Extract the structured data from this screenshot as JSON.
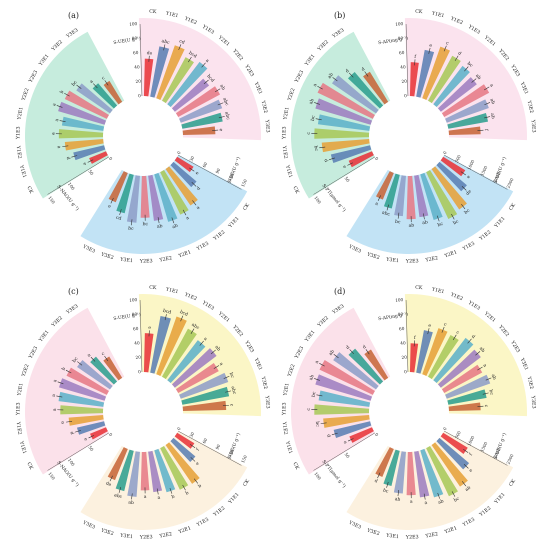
{
  "categories": [
    "CK",
    "Y1E1",
    "Y1E2",
    "Y1E3",
    "Y2E1",
    "Y2E2",
    "Y2E3",
    "Y3E1",
    "Y3E2",
    "Y3E3"
  ],
  "colors": [
    "#e8343a",
    "#5b7fb4",
    "#e6a23a",
    "#a8c85a",
    "#5fb2c9",
    "#9e7ec0",
    "#e67a86",
    "#8e9ec8",
    "#2f9f8f",
    "#c7663a"
  ],
  "chart_data": [
    {
      "type": "bar",
      "panel": "(a)",
      "groups": [
        {
          "name": "S-UE(U g⁻¹)",
          "fill": "#fbe3ee",
          "scale": [
            0,
            100
          ],
          "tick_labels": [
            "0",
            "20",
            "40",
            "60",
            "80",
            "100"
          ],
          "values": [
            52,
            71,
            78,
            69,
            74,
            60,
            66,
            61,
            57,
            45
          ],
          "sig": [
            "de",
            "abc",
            "cd",
            "bcd",
            "a",
            "bcd",
            "ab",
            "abc",
            "abc",
            "e"
          ]
        },
        {
          "name": "S-BG(U g⁻¹)",
          "fill": "#c2e3f5",
          "scale": [
            0,
            150
          ],
          "tick_labels": [
            "0",
            "30",
            "60",
            "90",
            "120",
            "150"
          ],
          "values": [
            40,
            63,
            92,
            98,
            103,
            95,
            87,
            98,
            82,
            66
          ],
          "sig": [
            "e",
            "d",
            "a",
            "a",
            "ab",
            "ab",
            "bc",
            "bc",
            "cd",
            "e"
          ]
        },
        {
          "name": "S-NAG(U g⁻¹)",
          "fill": "#c6ecdd",
          "scale": [
            0,
            150
          ],
          "tick_labels": [
            "0",
            "50",
            "100",
            "150"
          ],
          "values": [
            38,
            66,
            80,
            92,
            87,
            101,
            97,
            85,
            61,
            51
          ],
          "sig": [
            "e",
            "d",
            "a",
            "a",
            "a",
            "a",
            "b",
            "bc",
            "a",
            "c"
          ]
        }
      ]
    },
    {
      "type": "bar",
      "panel": "(b)",
      "groups": [
        {
          "name": "S-AP(mg g⁻¹)",
          "fill": "#fbe3ee",
          "scale": [
            0,
            100
          ],
          "tick_labels": [
            "0",
            "20",
            "40",
            "60",
            "80",
            "100"
          ],
          "values": [
            47,
            66,
            76,
            71,
            67,
            63,
            71,
            62,
            56,
            44
          ],
          "sig": [
            "f",
            "e",
            "c",
            "d",
            "bc",
            "ab",
            "a",
            "ab",
            "ab",
            "f"
          ]
        },
        {
          "name": "S-UE(U g⁻¹)",
          "fill": "#c2e3f5",
          "scale": [
            0,
            2500
          ],
          "tick_labels": [
            "0",
            "500",
            "1000",
            "1500",
            "2000",
            "2500"
          ],
          "values": [
            900,
            1250,
            1700,
            1800,
            1650,
            1450,
            1500,
            1400,
            1200,
            1000
          ],
          "sig": [
            "e",
            "de",
            "bc",
            "bc",
            "bc",
            "ab",
            "ab",
            "bc",
            "abc",
            "a"
          ]
        },
        {
          "name": "S-PT(μmol g⁻¹)",
          "fill": "#c6ecdd",
          "scale": [
            0,
            100
          ],
          "tick_labels": [
            "0",
            "50",
            "100"
          ],
          "values": [
            35,
            56,
            66,
            76,
            72,
            80,
            85,
            74,
            61,
            49
          ],
          "sig": [
            "e",
            "d",
            "bc",
            "c",
            "bc",
            "ab",
            "a",
            "ab",
            "d",
            "d"
          ]
        }
      ]
    },
    {
      "type": "bar",
      "panel": "(c)",
      "groups": [
        {
          "name": "S-UE(U g⁻¹)",
          "fill": "#fbf6c6",
          "scale": [
            0,
            100
          ],
          "tick_labels": [
            "0",
            "20",
            "40",
            "60",
            "80",
            "100"
          ],
          "values": [
            54,
            80,
            85,
            76,
            70,
            73,
            64,
            70,
            66,
            60
          ],
          "sig": [
            "e",
            "bcd",
            "bcd",
            "abc",
            "a",
            "ab",
            "a",
            "bc",
            "abc",
            "c"
          ]
        },
        {
          "name": "S-BG(U g⁻¹)",
          "fill": "#fcf1df",
          "scale": [
            0,
            150
          ],
          "tick_labels": [
            "0",
            "30",
            "60",
            "90",
            "120",
            "150"
          ],
          "values": [
            42,
            60,
            98,
            96,
            91,
            85,
            80,
            94,
            86,
            70
          ],
          "sig": [
            "f",
            "e",
            "b",
            "b",
            "b",
            "a",
            "a",
            "ab",
            "abc",
            "de"
          ]
        },
        {
          "name": "S-NAG(U g⁻¹)",
          "fill": "#fbe1ea",
          "scale": [
            0,
            150
          ],
          "tick_labels": [
            "0",
            "50",
            "100",
            "150"
          ],
          "values": [
            36,
            58,
            72,
            89,
            94,
            99,
            93,
            83,
            68,
            52
          ],
          "sig": [
            "e",
            "d",
            "a",
            "a",
            "a",
            "a",
            "b",
            "bc",
            "a",
            "c"
          ]
        }
      ]
    },
    {
      "type": "bar",
      "panel": "(d)",
      "groups": [
        {
          "name": "S-AP(mg g⁻¹)",
          "fill": "#fbf6c6",
          "scale": [
            0,
            100
          ],
          "tick_labels": [
            "0",
            "20",
            "40",
            "60",
            "80",
            "100"
          ],
          "values": [
            40,
            60,
            68,
            66,
            74,
            70,
            60,
            64,
            54,
            44
          ],
          "sig": [
            "f",
            "e",
            "c",
            "c",
            "d",
            "ab",
            "a",
            "ab",
            "bc",
            "c"
          ]
        },
        {
          "name": "S-UE(U g⁻¹)",
          "fill": "#fcf1df",
          "scale": [
            0,
            2500
          ],
          "tick_labels": [
            "0",
            "500",
            "1000",
            "1500",
            "2000",
            "2500"
          ],
          "values": [
            1000,
            1350,
            1750,
            1850,
            1700,
            1600,
            1500,
            1450,
            1250,
            1050
          ],
          "sig": [
            "f",
            "e",
            "ab",
            "bc",
            "ab",
            "a",
            "a",
            "ab",
            "bc",
            "d"
          ]
        },
        {
          "name": "S-PT(μmol g⁻¹)",
          "fill": "#fbe1ea",
          "scale": [
            0,
            100
          ],
          "tick_labels": [
            "0",
            "50",
            "100"
          ],
          "values": [
            34,
            52,
            64,
            76,
            71,
            80,
            82,
            72,
            60,
            46
          ],
          "sig": [
            "e",
            "d",
            "bc",
            "c",
            "bc",
            "ab",
            "a",
            "ab",
            "d",
            "d"
          ]
        }
      ]
    }
  ]
}
